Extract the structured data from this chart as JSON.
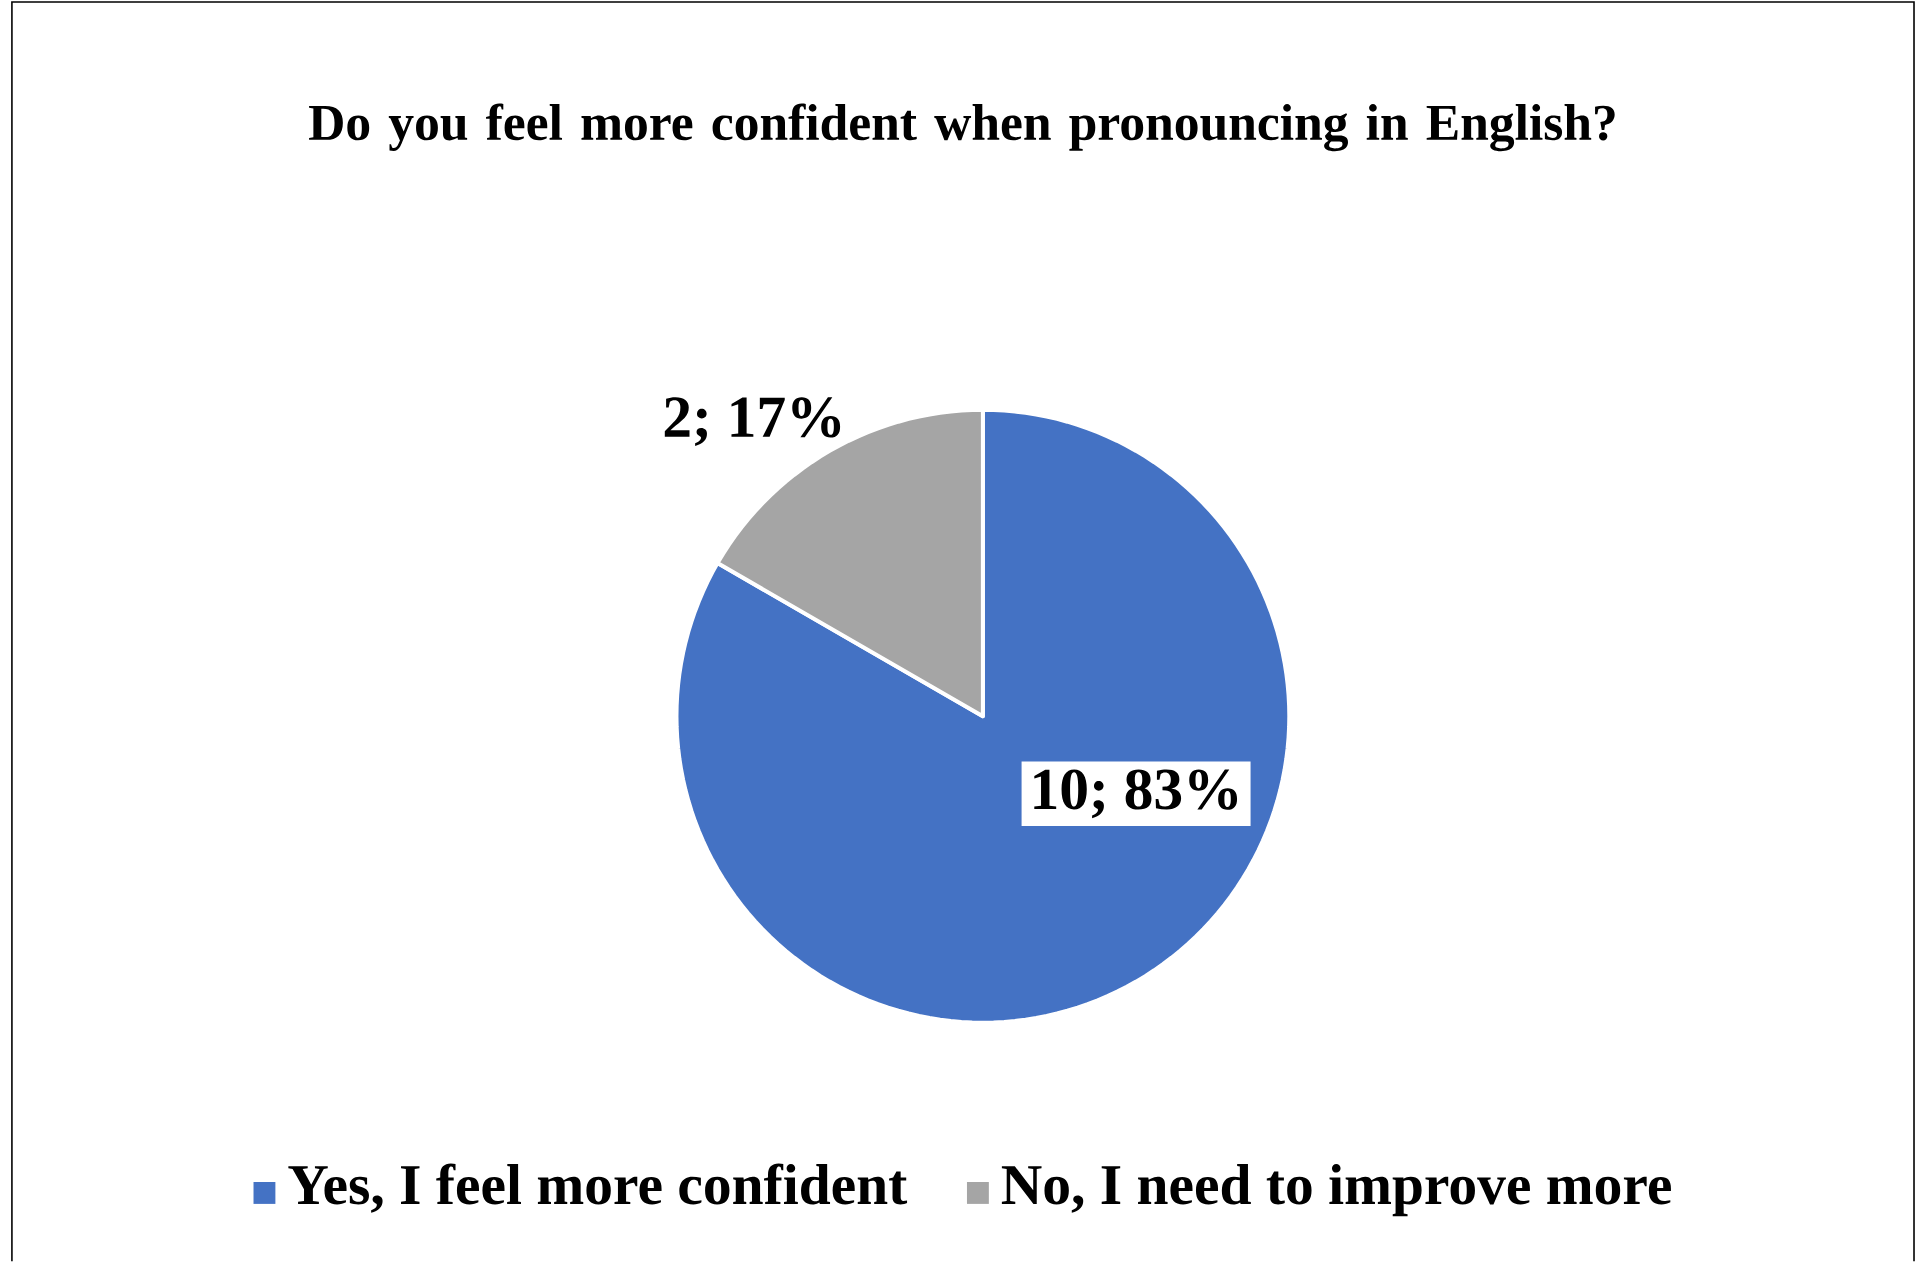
{
  "chart_data": {
    "type": "pie",
    "title": "Do you feel more confident when pronouncing in English?",
    "categories": [
      "Yes, I feel more confident",
      "No, I need to improve more"
    ],
    "values": [
      10,
      2
    ],
    "colors": [
      "#4472c4",
      "#a5a5a5"
    ],
    "value_labels": [
      "10; 83%",
      "2; 17%"
    ],
    "legend": "bottom"
  }
}
